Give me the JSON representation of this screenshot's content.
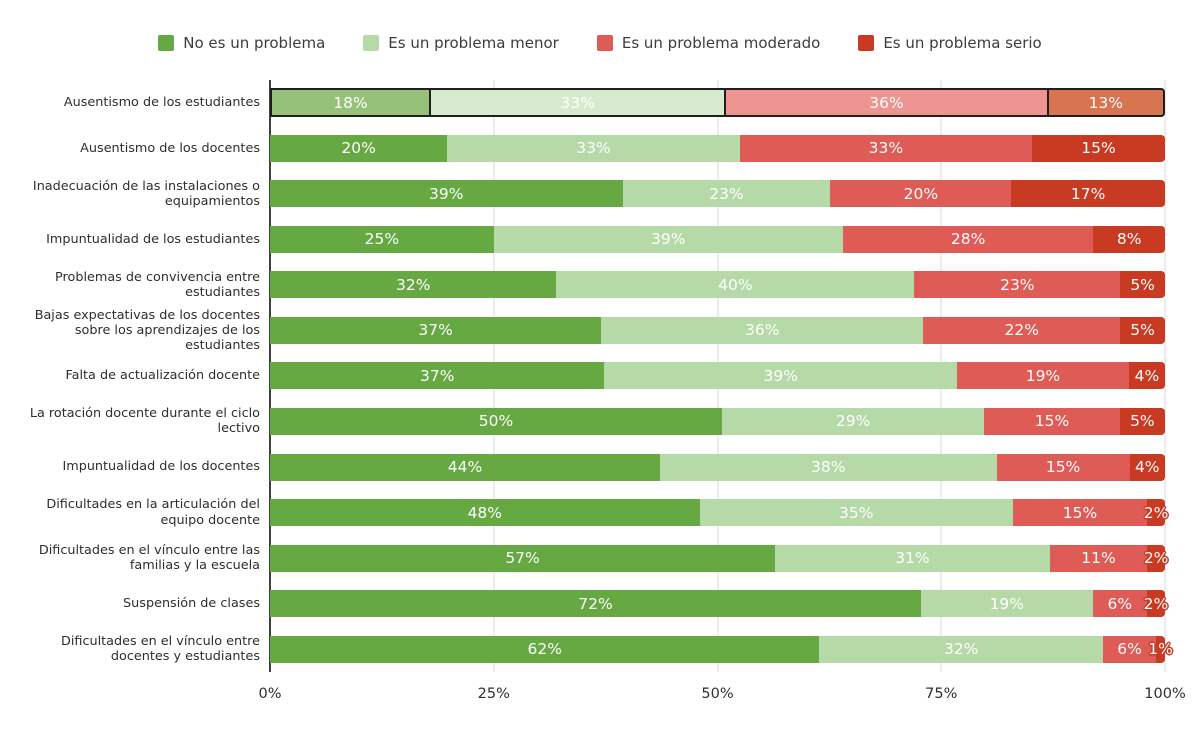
{
  "chart_data": {
    "type": "bar",
    "orientation": "horizontal",
    "stacked": true,
    "title": "",
    "legend_position": "top",
    "value_suffix": "%",
    "grid": true,
    "xlim": [
      0,
      100
    ],
    "series": [
      {
        "name": "No es un problema",
        "color": "#66a943",
        "hover_color": "#95c178"
      },
      {
        "name": "Es un problema menor",
        "color": "#b6d9a8",
        "hover_color": "#d7eacd"
      },
      {
        "name": "Es un problema moderado",
        "color": "#df5c56",
        "hover_color": "#ee9591"
      },
      {
        "name": "Es un problema serio",
        "color": "#c93a22",
        "hover_color": "#d8744f"
      }
    ],
    "rows": [
      {
        "label": "Ausentismo de los estudiantes",
        "values": [
          18,
          33,
          36,
          13
        ],
        "highlighted": true
      },
      {
        "label": "Ausentismo de los docentes",
        "values": [
          20,
          33,
          33,
          15
        ],
        "highlighted": false
      },
      {
        "label": "Inadecuación de las instalaciones o equipamientos",
        "values": [
          39,
          23,
          20,
          17
        ],
        "highlighted": false
      },
      {
        "label": "Impuntualidad de los estudiantes",
        "values": [
          25,
          39,
          28,
          8
        ],
        "highlighted": false
      },
      {
        "label": "Problemas de convivencia entre estudiantes",
        "values": [
          32,
          40,
          23,
          5
        ],
        "highlighted": false
      },
      {
        "label": "Bajas expectativas de los docentes sobre los aprendizajes de los estudiantes",
        "values": [
          37,
          36,
          22,
          5
        ],
        "highlighted": false
      },
      {
        "label": "Falta de actualización docente",
        "values": [
          37,
          39,
          19,
          4
        ],
        "highlighted": false
      },
      {
        "label": "La rotación docente durante el ciclo lectivo",
        "values": [
          50,
          29,
          15,
          5
        ],
        "highlighted": false
      },
      {
        "label": "Impuntualidad de los docentes",
        "values": [
          44,
          38,
          15,
          4
        ],
        "highlighted": false
      },
      {
        "label": "Dificultades en la articulación del equipo docente",
        "values": [
          48,
          35,
          15,
          2
        ],
        "highlighted": false
      },
      {
        "label": "Dificultades en el vínculo entre las familias y la escuela",
        "values": [
          57,
          31,
          11,
          2
        ],
        "highlighted": false
      },
      {
        "label": "Suspensión de clases",
        "values": [
          72,
          19,
          6,
          2
        ],
        "highlighted": false
      },
      {
        "label": "Dificultades en el vínculo entre docentes y estudiantes",
        "values": [
          62,
          32,
          6,
          1
        ],
        "highlighted": false
      }
    ],
    "x_axis": {
      "ticks": [
        {
          "label": "0%",
          "value": 0
        },
        {
          "label": "25%",
          "value": 25
        },
        {
          "label": "50%",
          "value": 50
        },
        {
          "label": "75%",
          "value": 75
        },
        {
          "label": "100%",
          "value": 100
        }
      ]
    }
  }
}
